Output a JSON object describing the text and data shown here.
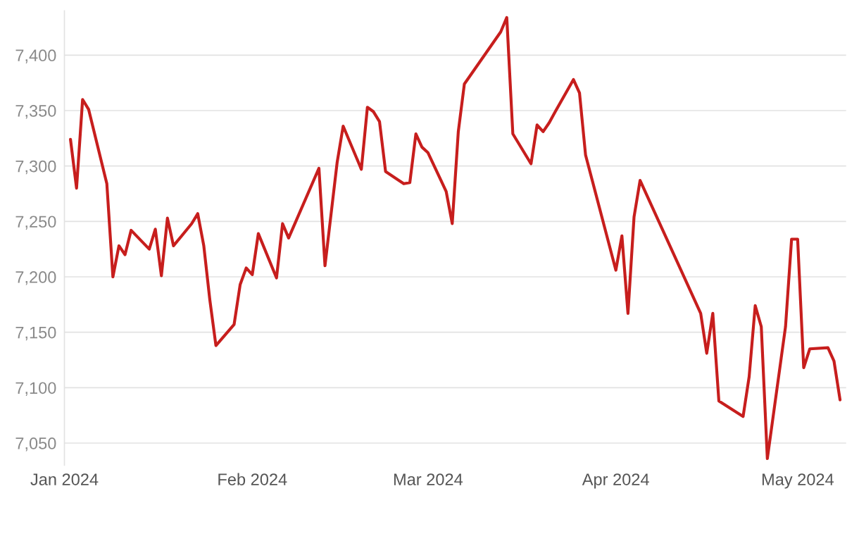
{
  "chart_data": {
    "type": "line",
    "x": [
      "2024-01-02",
      "2024-01-03",
      "2024-01-04",
      "2024-01-05",
      "2024-01-08",
      "2024-01-09",
      "2024-01-10",
      "2024-01-11",
      "2024-01-12",
      "2024-01-15",
      "2024-01-16",
      "2024-01-17",
      "2024-01-18",
      "2024-01-19",
      "2024-01-22",
      "2024-01-23",
      "2024-01-24",
      "2024-01-25",
      "2024-01-26",
      "2024-01-29",
      "2024-01-30",
      "2024-01-31",
      "2024-02-01",
      "2024-02-02",
      "2024-02-05",
      "2024-02-06",
      "2024-02-07",
      "2024-02-12",
      "2024-02-13",
      "2024-02-15",
      "2024-02-16",
      "2024-02-19",
      "2024-02-20",
      "2024-02-21",
      "2024-02-22",
      "2024-02-23",
      "2024-02-26",
      "2024-02-27",
      "2024-02-28",
      "2024-02-29",
      "2024-03-01",
      "2024-03-04",
      "2024-03-05",
      "2024-03-06",
      "2024-03-07",
      "2024-03-13",
      "2024-03-14",
      "2024-03-15",
      "2024-03-18",
      "2024-03-19",
      "2024-03-20",
      "2024-03-21",
      "2024-03-22",
      "2024-03-25",
      "2024-03-26",
      "2024-03-27",
      "2024-04-01",
      "2024-04-02",
      "2024-04-03",
      "2024-04-04",
      "2024-04-05",
      "2024-04-15",
      "2024-04-16",
      "2024-04-17",
      "2024-04-18",
      "2024-04-22",
      "2024-04-23",
      "2024-04-24",
      "2024-04-25",
      "2024-04-26",
      "2024-04-29",
      "2024-04-30",
      "2024-05-01",
      "2024-05-02",
      "2024-05-03",
      "2024-05-06",
      "2024-05-07",
      "2024-05-08"
    ],
    "series": [
      {
        "color": "#c71e1d",
        "values": [
          7324,
          7280,
          7360,
          7351,
          7284,
          7200,
          7228,
          7220,
          7242,
          7225,
          7243,
          7201,
          7253,
          7228,
          7248,
          7257,
          7228,
          7179,
          7138,
          7157,
          7193,
          7208,
          7202,
          7239,
          7199,
          7248,
          7235,
          7298,
          7210,
          7303,
          7336,
          7297,
          7353,
          7349,
          7340,
          7295,
          7284,
          7285,
          7329,
          7317,
          7312,
          7277,
          7248,
          7331,
          7374,
          7421,
          7434,
          7329,
          7302,
          7337,
          7331,
          7339,
          7349,
          7378,
          7366,
          7310,
          7206,
          7237,
          7167,
          7254,
          7287,
          7167,
          7131,
          7167,
          7088,
          7074,
          7110,
          7174,
          7155,
          7036,
          7155,
          7234,
          7234,
          7118,
          7135,
          7136,
          7124,
          7089
        ]
      }
    ],
    "xlim": [
      "2024-01-01",
      "2024-05-09"
    ],
    "xticks": [
      {
        "value": "2024-01-01",
        "label": "Jan 2024"
      },
      {
        "value": "2024-02-01",
        "label": "Feb 2024"
      },
      {
        "value": "2024-03-01",
        "label": "Mar 2024"
      },
      {
        "value": "2024-04-01",
        "label": "Apr 2024"
      },
      {
        "value": "2024-05-01",
        "label": "May 2024"
      }
    ],
    "ylim": [
      7030,
      7440
    ],
    "yticks": [
      {
        "value": 7050,
        "label": "7,050"
      },
      {
        "value": 7100,
        "label": "7,100"
      },
      {
        "value": 7150,
        "label": "7,150"
      },
      {
        "value": 7200,
        "label": "7,200"
      },
      {
        "value": 7250,
        "label": "7,250"
      },
      {
        "value": 7300,
        "label": "7,300"
      },
      {
        "value": 7350,
        "label": "7,350"
      },
      {
        "value": 7400,
        "label": "7,400"
      }
    ],
    "grid": "y",
    "marker": "none",
    "line_style": "solid"
  }
}
